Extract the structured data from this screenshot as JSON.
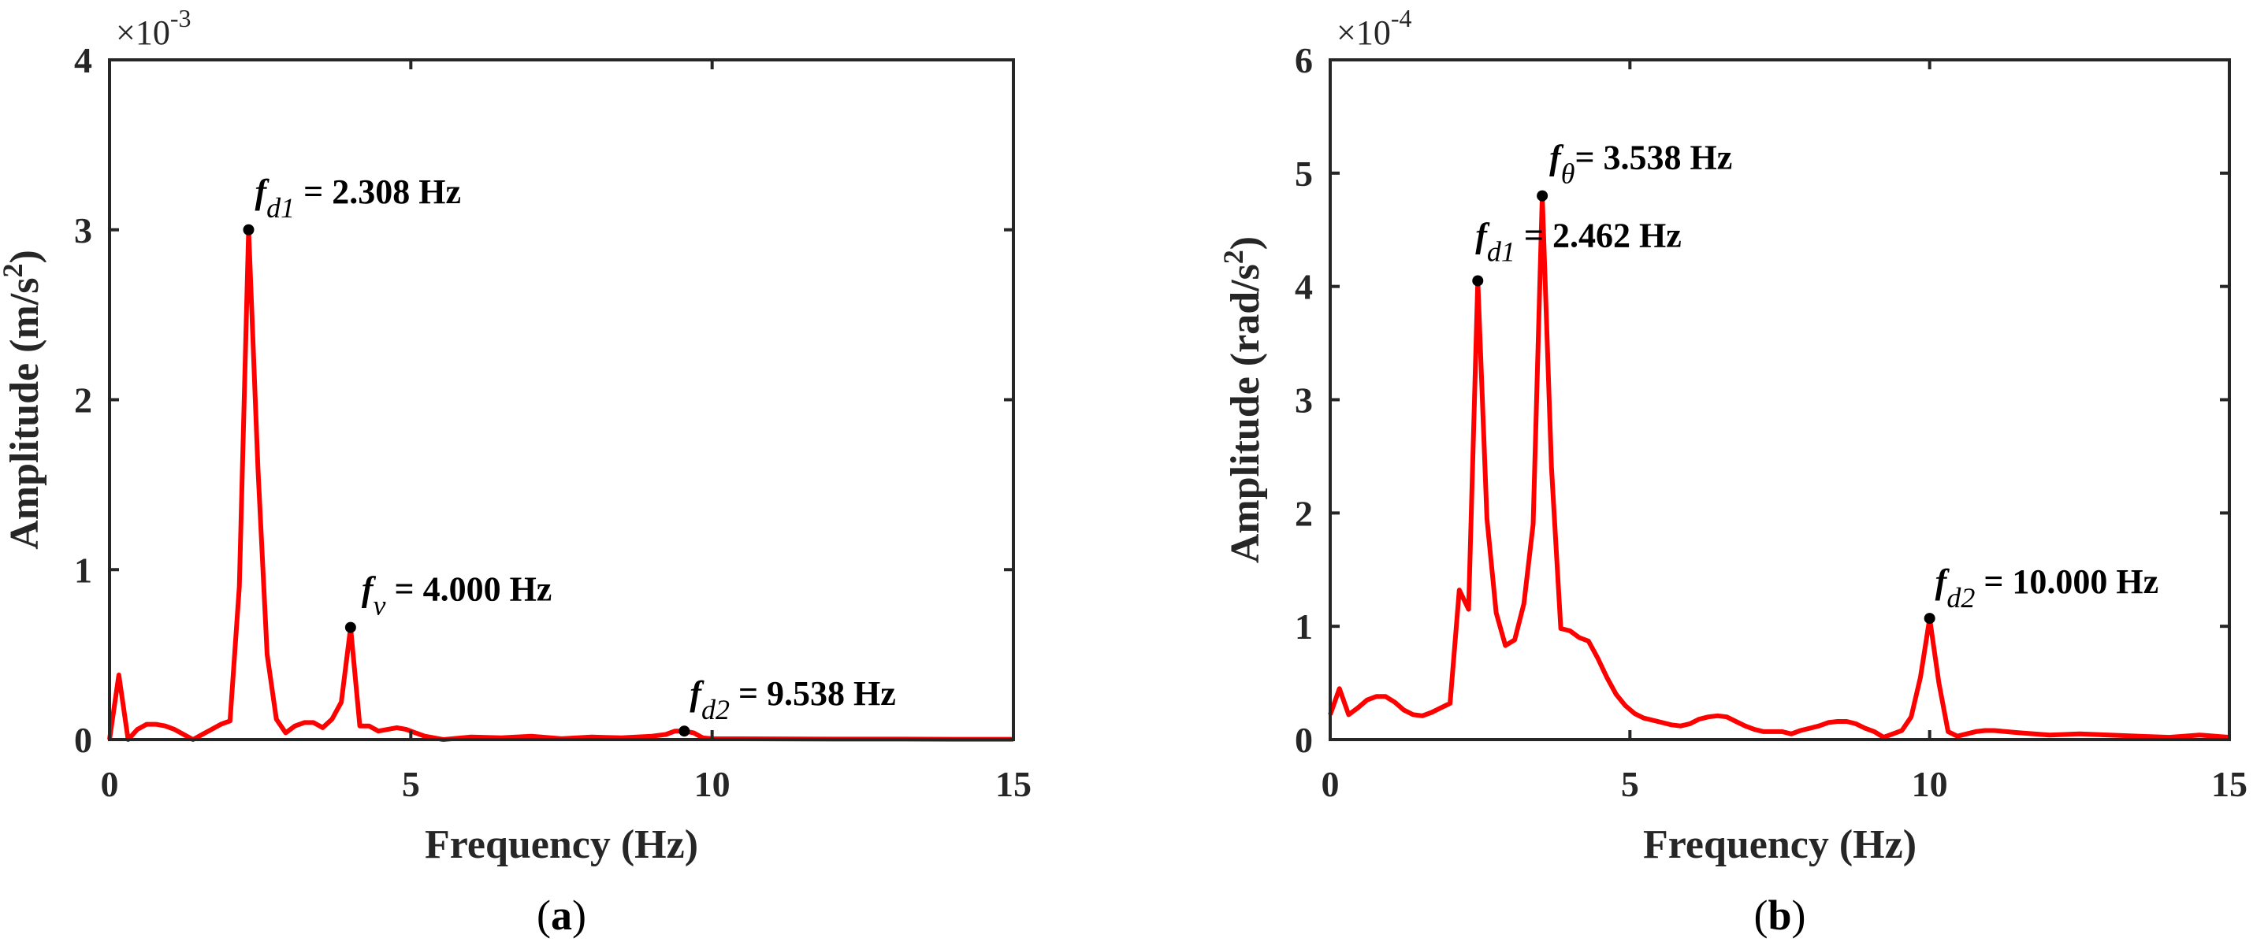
{
  "chart_data": [
    {
      "type": "line",
      "caption": "(a)",
      "xlabel": "Frequency (Hz)",
      "ylabel": {
        "prefix": "Amplitude (m/s",
        "sup": "2",
        "suffix": ")"
      },
      "y_multiplier": {
        "base": "×10",
        "exp": "-3"
      },
      "xlim": [
        0,
        15
      ],
      "ylim": [
        0,
        4
      ],
      "xticks": [
        "0",
        "5",
        "10",
        "15"
      ],
      "yticks": [
        "0",
        "1",
        "2",
        "3",
        "4"
      ],
      "grid": false,
      "line_color": "#ff0000",
      "x": [
        0,
        0.154,
        0.308,
        0.462,
        0.615,
        0.769,
        0.923,
        1.077,
        1.231,
        1.385,
        1.538,
        1.692,
        1.846,
        2.0,
        2.154,
        2.308,
        2.462,
        2.615,
        2.769,
        2.923,
        3.077,
        3.231,
        3.385,
        3.538,
        3.692,
        3.846,
        4.0,
        4.154,
        4.308,
        4.462,
        4.615,
        4.769,
        4.923,
        5.077,
        5.231,
        5.385,
        5.538,
        6.0,
        6.5,
        7.0,
        7.5,
        8.0,
        8.5,
        9.0,
        9.231,
        9.385,
        9.538,
        9.692,
        9.846,
        10.0,
        11,
        12,
        13,
        14,
        15
      ],
      "values": [
        0,
        0.38,
        0.0,
        0.06,
        0.09,
        0.09,
        0.08,
        0.06,
        0.03,
        0.0,
        0.03,
        0.06,
        0.09,
        0.11,
        0.9,
        3.0,
        1.6,
        0.5,
        0.12,
        0.04,
        0.08,
        0.1,
        0.1,
        0.07,
        0.12,
        0.22,
        0.66,
        0.08,
        0.08,
        0.05,
        0.06,
        0.07,
        0.06,
        0.04,
        0.02,
        0.01,
        0.0,
        0.015,
        0.01,
        0.02,
        0.005,
        0.015,
        0.01,
        0.02,
        0.03,
        0.05,
        0.05,
        0.04,
        0.01,
        0.005,
        0.004,
        0.003,
        0.003,
        0.002,
        0.002
      ],
      "annotations": [
        {
          "x": 2.308,
          "y": 3.0,
          "symbol": "f",
          "sub": "d1",
          "text": " = 2.308 Hz"
        },
        {
          "x": 4.0,
          "y": 0.66,
          "symbol": "f",
          "sub": "v",
          "text": " = 4.000 Hz"
        },
        {
          "x": 9.538,
          "y": 0.05,
          "symbol": "f",
          "sub": "d2",
          "text": " = 9.538 Hz"
        }
      ]
    },
    {
      "type": "line",
      "caption": "(b)",
      "xlabel": "Frequency (Hz)",
      "ylabel": {
        "prefix": "Amplitude (rad/s",
        "sup": "2",
        "suffix": ")"
      },
      "y_multiplier": {
        "base": "×10",
        "exp": "-4"
      },
      "xlim": [
        0,
        15
      ],
      "ylim": [
        0,
        6
      ],
      "xticks": [
        "0",
        "5",
        "10",
        "15"
      ],
      "yticks": [
        "0",
        "1",
        "2",
        "3",
        "4",
        "5",
        "6"
      ],
      "grid": false,
      "line_color": "#ff0000",
      "x": [
        0,
        0.154,
        0.308,
        0.462,
        0.615,
        0.769,
        0.923,
        1.077,
        1.231,
        1.385,
        1.538,
        1.692,
        1.846,
        2.0,
        2.154,
        2.308,
        2.462,
        2.615,
        2.769,
        2.923,
        3.077,
        3.231,
        3.385,
        3.538,
        3.692,
        3.846,
        4.0,
        4.154,
        4.308,
        4.462,
        4.615,
        4.769,
        4.923,
        5.077,
        5.231,
        5.385,
        5.538,
        5.692,
        5.846,
        6.0,
        6.154,
        6.308,
        6.462,
        6.615,
        6.769,
        6.923,
        7.077,
        7.231,
        7.385,
        7.538,
        7.692,
        7.846,
        8.0,
        8.154,
        8.308,
        8.462,
        8.615,
        8.769,
        8.923,
        9.077,
        9.231,
        9.385,
        9.538,
        9.692,
        9.846,
        10.0,
        10.154,
        10.308,
        10.462,
        10.615,
        10.769,
        10.923,
        11.077,
        11.5,
        12,
        12.5,
        13,
        13.5,
        14,
        14.5,
        15
      ],
      "values": [
        0.22,
        0.45,
        0.22,
        0.28,
        0.35,
        0.38,
        0.38,
        0.33,
        0.26,
        0.22,
        0.21,
        0.24,
        0.28,
        0.32,
        1.32,
        1.15,
        4.05,
        1.95,
        1.12,
        0.83,
        0.88,
        1.2,
        1.9,
        4.8,
        2.4,
        0.98,
        0.96,
        0.9,
        0.87,
        0.72,
        0.55,
        0.4,
        0.3,
        0.23,
        0.19,
        0.17,
        0.15,
        0.13,
        0.12,
        0.14,
        0.18,
        0.2,
        0.21,
        0.2,
        0.16,
        0.12,
        0.09,
        0.07,
        0.07,
        0.07,
        0.05,
        0.08,
        0.1,
        0.12,
        0.15,
        0.16,
        0.16,
        0.14,
        0.1,
        0.07,
        0.02,
        0.05,
        0.08,
        0.2,
        0.55,
        1.07,
        0.5,
        0.07,
        0.03,
        0.05,
        0.07,
        0.08,
        0.08,
        0.06,
        0.04,
        0.05,
        0.04,
        0.03,
        0.02,
        0.04,
        0.02
      ],
      "annotations": [
        {
          "x": 3.538,
          "y": 4.8,
          "symbol": "f",
          "sub": "θ",
          "text": "= 3.538 Hz"
        },
        {
          "x": 2.462,
          "y": 4.05,
          "symbol": "f",
          "sub": "d1",
          "text": " = 2.462 Hz"
        },
        {
          "x": 10.0,
          "y": 1.07,
          "symbol": "f",
          "sub": "d2",
          "text": " = 10.000 Hz"
        }
      ]
    }
  ]
}
